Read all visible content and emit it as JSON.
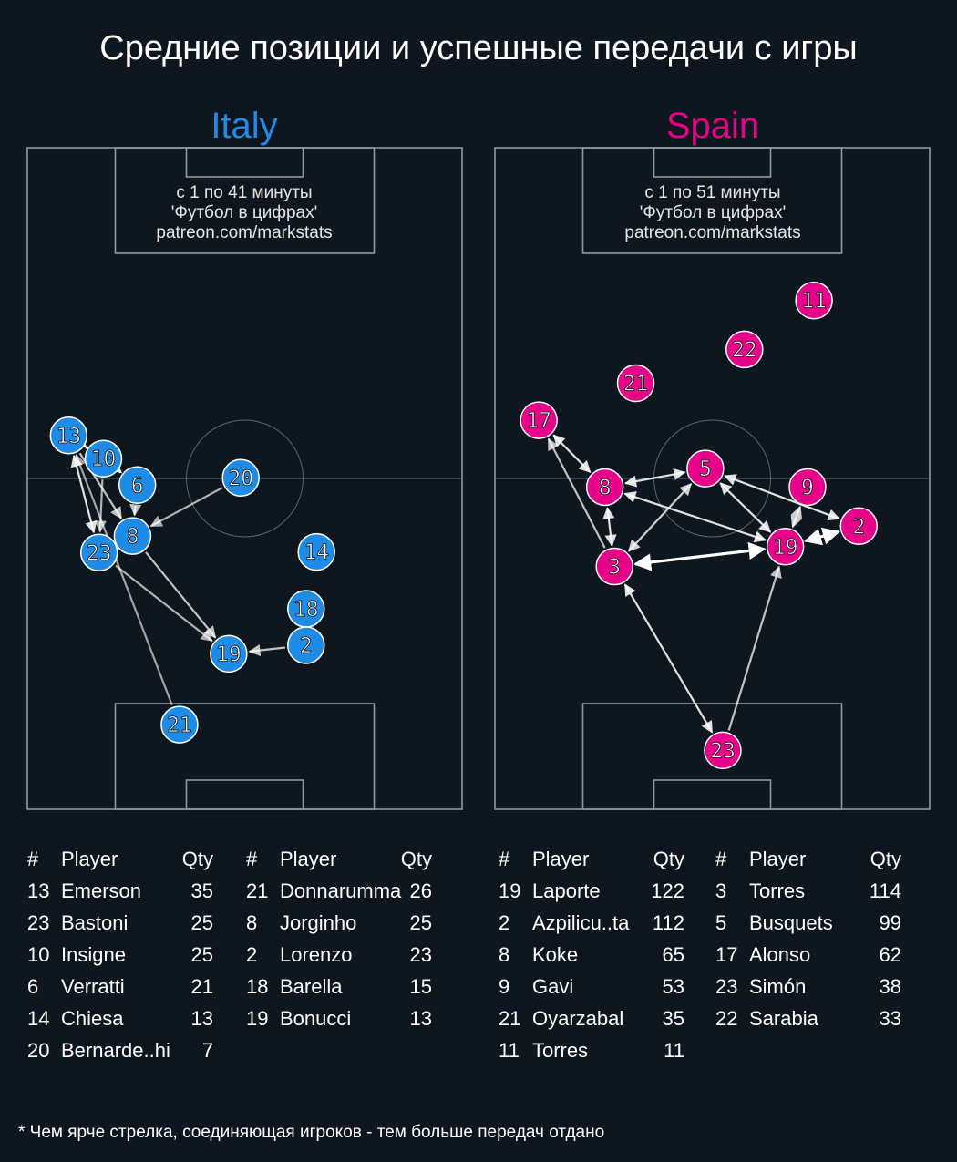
{
  "title": "Средние позиции и успешные передачи с игры",
  "footnote": "* Чем ярче стрелка, соединяющая игроков - тем больше передач отдано",
  "colors": {
    "background": "#0e171f",
    "pitch_lines": "#8a9aa0",
    "italy": "#1e8be6",
    "spain": "#e6008a"
  },
  "teams": {
    "italy": {
      "name": "Italy",
      "info": [
        "с 1 по 41 минуты",
        "'Футбол в цифрах'",
        "patreon.com/markstats"
      ],
      "table_headers": {
        "num": "#",
        "player": "Player",
        "qty": "Qty"
      },
      "table_left": [
        {
          "num": "13",
          "player": "Emerson",
          "qty": "35"
        },
        {
          "num": "23",
          "player": "Bastoni",
          "qty": "25"
        },
        {
          "num": "10",
          "player": "Insigne",
          "qty": "25"
        },
        {
          "num": "6",
          "player": "Verratti",
          "qty": "21"
        },
        {
          "num": "14",
          "player": "Chiesa",
          "qty": "13"
        },
        {
          "num": "20",
          "player": "Bernarde..hi",
          "qty": "7"
        }
      ],
      "table_right": [
        {
          "num": "21",
          "player": "Donnarumma",
          "qty": "26"
        },
        {
          "num": "8",
          "player": "Jorginho",
          "qty": "25"
        },
        {
          "num": "2",
          "player": "Lorenzo",
          "qty": "23"
        },
        {
          "num": "18",
          "player": "Barella",
          "qty": "15"
        },
        {
          "num": "19",
          "player": "Bonucci",
          "qty": "13"
        }
      ]
    },
    "spain": {
      "name": "Spain",
      "info": [
        "с 1 по 51 минуты",
        "'Футбол в цифрах'",
        "patreon.com/markstats"
      ],
      "table_headers": {
        "num": "#",
        "player": "Player",
        "qty": "Qty"
      },
      "table_left": [
        {
          "num": "19",
          "player": "Laporte",
          "qty": "122"
        },
        {
          "num": "2",
          "player": "Azpilicu..ta",
          "qty": "112"
        },
        {
          "num": "8",
          "player": "Koke",
          "qty": "65"
        },
        {
          "num": "9",
          "player": "Gavi",
          "qty": "53"
        },
        {
          "num": "21",
          "player": "Oyarzabal",
          "qty": "35"
        },
        {
          "num": "11",
          "player": "Torres",
          "qty": "11"
        }
      ],
      "table_right": [
        {
          "num": "3",
          "player": "Torres",
          "qty": "114"
        },
        {
          "num": "5",
          "player": "Busquets",
          "qty": "99"
        },
        {
          "num": "17",
          "player": "Alonso",
          "qty": "62"
        },
        {
          "num": "23",
          "player": "Simón",
          "qty": "38"
        },
        {
          "num": "22",
          "player": "Sarabia",
          "qty": "33"
        }
      ]
    }
  },
  "chart_data": [
    {
      "type": "scatter",
      "team": "Italy",
      "players": [
        {
          "num": "13",
          "x": 9.5,
          "y": 56.5
        },
        {
          "num": "10",
          "x": 17.5,
          "y": 53.0
        },
        {
          "num": "6",
          "x": 25.3,
          "y": 49.0
        },
        {
          "num": "20",
          "x": 49.1,
          "y": 50.1
        },
        {
          "num": "8",
          "x": 24.2,
          "y": 41.3
        },
        {
          "num": "23",
          "x": 16.5,
          "y": 38.8
        },
        {
          "num": "14",
          "x": 66.5,
          "y": 38.9
        },
        {
          "num": "18",
          "x": 64.1,
          "y": 30.3
        },
        {
          "num": "2",
          "x": 64.1,
          "y": 24.8
        },
        {
          "num": "19",
          "x": 46.3,
          "y": 23.5
        },
        {
          "num": "21",
          "x": 35.0,
          "y": 12.8
        }
      ],
      "passes": [
        {
          "from": "13",
          "to": "10",
          "brightness": 1.0,
          "two_way": true
        },
        {
          "from": "10",
          "to": "6",
          "brightness": 1.0,
          "two_way": false
        },
        {
          "from": "10",
          "to": "23",
          "brightness": 0.5,
          "two_way": false
        },
        {
          "from": "13",
          "to": "23",
          "brightness": 0.8,
          "two_way": true
        },
        {
          "from": "13",
          "to": "8",
          "brightness": 0.6,
          "two_way": false
        },
        {
          "from": "6",
          "to": "8",
          "brightness": 0.6,
          "two_way": false
        },
        {
          "from": "20",
          "to": "8",
          "brightness": 0.5,
          "two_way": false
        },
        {
          "from": "8",
          "to": "19",
          "brightness": 0.6,
          "two_way": false
        },
        {
          "from": "23",
          "to": "19",
          "brightness": 0.5,
          "two_way": false
        },
        {
          "from": "2",
          "to": "19",
          "brightness": 0.6,
          "two_way": false
        },
        {
          "from": "21",
          "to": "13",
          "brightness": 0.4,
          "two_way": false
        }
      ]
    },
    {
      "type": "scatter",
      "team": "Spain",
      "players": [
        {
          "num": "11",
          "x": 73.4,
          "y": 76.9
        },
        {
          "num": "22",
          "x": 57.4,
          "y": 69.5
        },
        {
          "num": "21",
          "x": 32.4,
          "y": 64.4
        },
        {
          "num": "17",
          "x": 10.1,
          "y": 58.8
        },
        {
          "num": "5",
          "x": 48.4,
          "y": 51.5
        },
        {
          "num": "8",
          "x": 25.3,
          "y": 48.7
        },
        {
          "num": "9",
          "x": 71.9,
          "y": 48.7
        },
        {
          "num": "2",
          "x": 83.7,
          "y": 42.8
        },
        {
          "num": "19",
          "x": 66.8,
          "y": 39.7
        },
        {
          "num": "3",
          "x": 27.5,
          "y": 36.7
        },
        {
          "num": "23",
          "x": 52.4,
          "y": 8.9
        }
      ],
      "passes": [
        {
          "from": "17",
          "to": "8",
          "brightness": 0.8,
          "two_way": true
        },
        {
          "from": "3",
          "to": "17",
          "brightness": 0.6,
          "two_way": false
        },
        {
          "from": "8",
          "to": "5",
          "brightness": 0.8,
          "two_way": true
        },
        {
          "from": "8",
          "to": "3",
          "brightness": 0.8,
          "two_way": true
        },
        {
          "from": "3",
          "to": "5",
          "brightness": 0.7,
          "two_way": true
        },
        {
          "from": "8",
          "to": "19",
          "brightness": 0.8,
          "two_way": true
        },
        {
          "from": "5",
          "to": "19",
          "brightness": 0.8,
          "two_way": true
        },
        {
          "from": "5",
          "to": "2",
          "brightness": 0.8,
          "two_way": true
        },
        {
          "from": "9",
          "to": "19",
          "brightness": 0.7,
          "two_way": true
        },
        {
          "from": "3",
          "to": "19",
          "brightness": 1.0,
          "two_way": true
        },
        {
          "from": "19",
          "to": "2",
          "brightness": 1.0,
          "two_way": true
        },
        {
          "from": "3",
          "to": "23",
          "brightness": 0.8,
          "two_way": true
        },
        {
          "from": "23",
          "to": "19",
          "brightness": 0.6,
          "two_way": false
        }
      ]
    }
  ]
}
